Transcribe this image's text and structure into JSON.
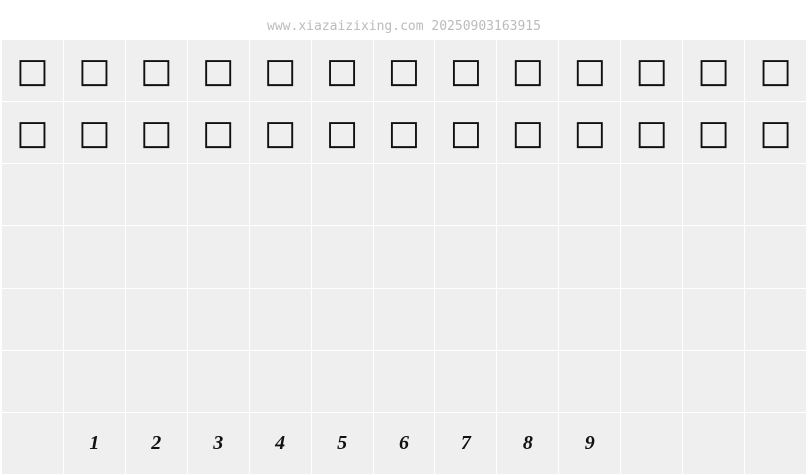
{
  "header": {
    "title": "www.xiazaizixing.com 20250903163915"
  },
  "grid": {
    "rows": [
      [
        "□",
        "□",
        "□",
        "□",
        "□",
        "□",
        "□",
        "□",
        "□",
        "□",
        "□",
        "□",
        "□"
      ],
      [
        "□",
        "□",
        "□",
        "□",
        "□",
        "□",
        "□",
        "□",
        "□",
        "□",
        "□",
        "□",
        "□"
      ],
      [
        null,
        null,
        null,
        null,
        null,
        null,
        null,
        null,
        null,
        null,
        null,
        null,
        null
      ],
      [
        null,
        null,
        null,
        null,
        null,
        null,
        null,
        null,
        null,
        null,
        null,
        null,
        null
      ],
      [
        null,
        null,
        null,
        null,
        null,
        null,
        null,
        null,
        null,
        null,
        null,
        null,
        null
      ],
      [
        null,
        null,
        null,
        null,
        null,
        null,
        null,
        null,
        null,
        null,
        null,
        null,
        null
      ],
      [
        null,
        "1",
        "2",
        "3",
        "4",
        "5",
        "6",
        "7",
        "8",
        "9",
        null,
        null,
        null
      ]
    ]
  }
}
